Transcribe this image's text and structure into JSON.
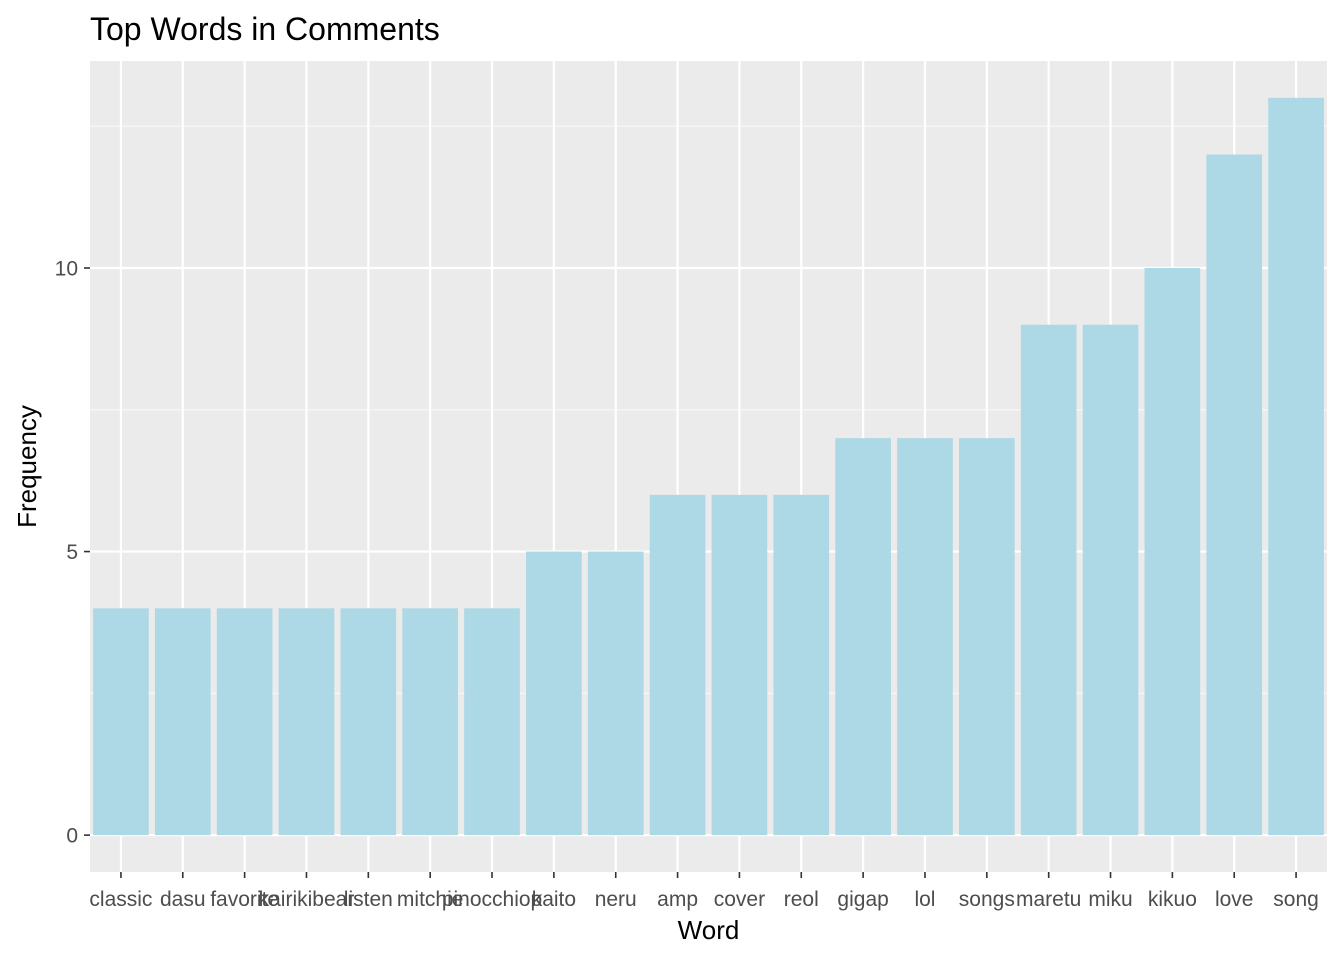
{
  "chart_data": {
    "type": "bar",
    "title": "Top Words in Comments",
    "xlabel": "Word",
    "ylabel": "Frequency",
    "categories": [
      "classic",
      "dasu",
      "favorite",
      "kairikibear",
      "listen",
      "mitchie",
      "pinocchiop",
      "kaito",
      "neru",
      "amp",
      "cover",
      "reol",
      "gigap",
      "lol",
      "songs",
      "maretu",
      "miku",
      "kikuo",
      "love",
      "song"
    ],
    "values": [
      4,
      4,
      4,
      4,
      4,
      4,
      4,
      5,
      5,
      6,
      6,
      6,
      7,
      7,
      7,
      9,
      9,
      10,
      12,
      13
    ],
    "ylim": [
      -0.65,
      13.65
    ],
    "yticks": [
      0,
      5,
      10
    ],
    "grid": true,
    "legend": "none",
    "colors": {
      "bar": "#ADD8E6",
      "panel": "#EBEBEB",
      "grid_major": "#FFFFFF",
      "grid_minor": "#F7F7F7"
    }
  }
}
